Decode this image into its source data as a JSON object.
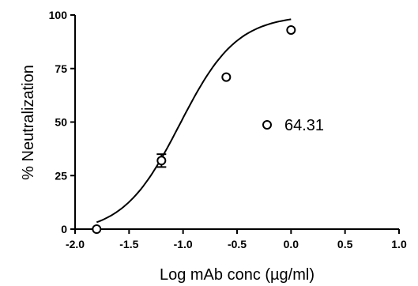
{
  "chart_data": {
    "type": "scatter",
    "title": "",
    "xlabel": "Log mAb conc (µg/ml)",
    "ylabel": "% Neutralization",
    "xlim": [
      -2.0,
      1.0
    ],
    "ylim": [
      0,
      100
    ],
    "x_ticks": [
      "-2.0",
      "-1.5",
      "-1.0",
      "-0.5",
      "0.0",
      "0.5",
      "1.0"
    ],
    "y_ticks": [
      "0",
      "25",
      "50",
      "75",
      "100"
    ],
    "grid": false,
    "legend_position": "right",
    "series": [
      {
        "name": "64.31",
        "marker": "open-circle",
        "points": [
          {
            "x": -1.8,
            "y": 0,
            "err": 0
          },
          {
            "x": -1.2,
            "y": 32,
            "err": 3
          },
          {
            "x": -0.6,
            "y": 71,
            "err": 0
          },
          {
            "x": 0.0,
            "y": 93,
            "err": 0
          }
        ],
        "fit_curve": "sigmoidal",
        "color": "#000000"
      }
    ]
  }
}
